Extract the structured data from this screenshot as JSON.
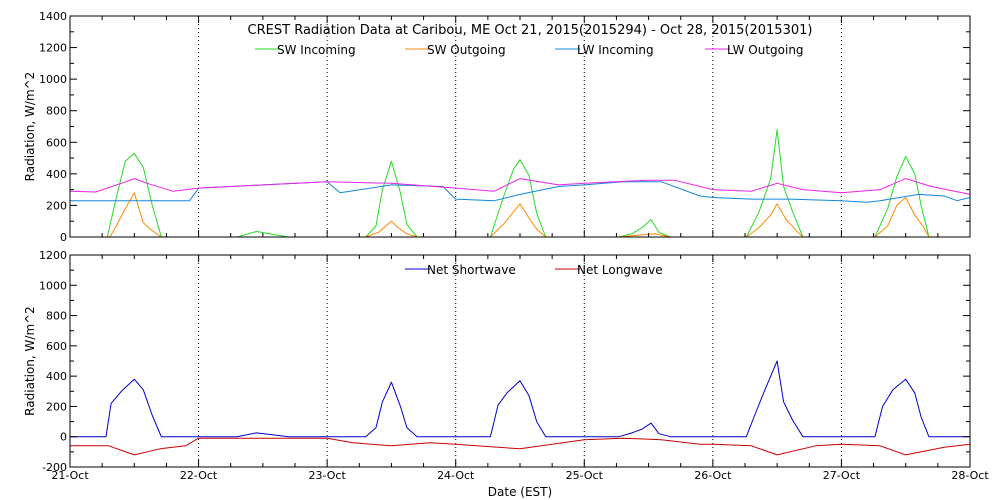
{
  "chart_data": [
    {
      "type": "line",
      "title": "CREST Radiation Data at Caribou, ME   Oct 21, 2015(2015294) - Oct 28, 2015(2015301)",
      "xlabel": "",
      "ylabel": "Radiation, W/m^2",
      "x_ticks": [
        "21-Oct",
        "22-Oct",
        "23-Oct",
        "24-Oct",
        "25-Oct",
        "26-Oct",
        "27-Oct",
        "28-Oct"
      ],
      "show_x_tick_labels": false,
      "xlim": [
        0,
        7
      ],
      "ylim": [
        0,
        1400
      ],
      "y_ticks": [
        0,
        200,
        400,
        600,
        800,
        1000,
        1200,
        1400
      ],
      "grid": "vertical dotted at day boundaries",
      "legend": "top, single row",
      "series": [
        {
          "name": "SW Incoming",
          "color": "#22dd22",
          "x": [
            0,
            0.29,
            0.36,
            0.43,
            0.5,
            0.57,
            0.64,
            0.71,
            1.3,
            1.45,
            1.55,
            1.7,
            2.3,
            2.38,
            2.43,
            2.5,
            2.57,
            2.62,
            2.7,
            3.27,
            3.37,
            3.45,
            3.5,
            3.57,
            3.63,
            3.7,
            4.27,
            4.37,
            4.45,
            4.52,
            4.58,
            4.67,
            5.26,
            5.36,
            5.45,
            5.5,
            5.55,
            5.62,
            5.7,
            6.26,
            6.36,
            6.43,
            6.5,
            6.57,
            6.62,
            6.68,
            7
          ],
          "y": [
            0,
            0,
            250,
            480,
            530,
            440,
            200,
            0,
            0,
            35,
            20,
            0,
            0,
            70,
            300,
            480,
            280,
            80,
            0,
            0,
            250,
            430,
            490,
            390,
            150,
            0,
            0,
            20,
            60,
            110,
            30,
            0,
            0,
            160,
            370,
            680,
            320,
            160,
            0,
            0,
            180,
            380,
            510,
            400,
            200,
            0,
            0
          ]
        },
        {
          "name": "SW Outgoing",
          "color": "#ff8800",
          "x": [
            0,
            0.31,
            0.36,
            0.43,
            0.5,
            0.57,
            0.64,
            0.71,
            2.3,
            2.4,
            2.47,
            2.5,
            2.55,
            2.62,
            2.7,
            3.27,
            3.37,
            3.45,
            3.5,
            3.57,
            3.63,
            3.7,
            4.27,
            4.4,
            4.55,
            4.67,
            5.26,
            5.36,
            5.45,
            5.5,
            5.57,
            5.65,
            5.7,
            6.26,
            6.36,
            6.43,
            6.5,
            6.57,
            6.64,
            6.68,
            7
          ],
          "y": [
            0,
            0,
            70,
            180,
            280,
            90,
            40,
            0,
            0,
            30,
            80,
            100,
            60,
            20,
            0,
            0,
            80,
            160,
            210,
            120,
            50,
            0,
            0,
            10,
            20,
            0,
            0,
            60,
            140,
            210,
            110,
            40,
            0,
            0,
            70,
            200,
            250,
            140,
            60,
            0,
            0
          ]
        },
        {
          "name": "LW Incoming",
          "color": "#1188dd",
          "x": [
            0,
            0.5,
            0.93,
            1.0,
            1.5,
            2.0,
            2.1,
            2.5,
            2.9,
            3.0,
            3.3,
            3.5,
            3.8,
            4.0,
            4.3,
            4.6,
            4.9,
            5.0,
            5.3,
            5.6,
            6.0,
            6.2,
            6.3,
            6.6,
            6.8,
            6.9,
            7
          ],
          "y": [
            230,
            230,
            230,
            310,
            330,
            350,
            280,
            330,
            320,
            240,
            230,
            270,
            320,
            330,
            350,
            350,
            260,
            250,
            240,
            240,
            230,
            220,
            230,
            270,
            260,
            230,
            250
          ]
        },
        {
          "name": "LW Outgoing",
          "color": "#ee22ee",
          "x": [
            0,
            0.2,
            0.4,
            0.5,
            0.6,
            0.8,
            1.0,
            1.5,
            2.0,
            2.5,
            3.0,
            3.3,
            3.5,
            3.8,
            4.0,
            4.5,
            4.7,
            5.0,
            5.3,
            5.5,
            5.7,
            6.0,
            6.3,
            6.5,
            6.7,
            7
          ],
          "y": [
            290,
            285,
            340,
            370,
            340,
            290,
            310,
            330,
            350,
            340,
            310,
            290,
            370,
            330,
            340,
            360,
            360,
            300,
            290,
            340,
            300,
            280,
            300,
            370,
            320,
            270
          ]
        }
      ]
    },
    {
      "type": "line",
      "title": "",
      "xlabel": "Date (EST)",
      "ylabel": "Radiation, W/m^2",
      "x_ticks": [
        "21-Oct",
        "22-Oct",
        "23-Oct",
        "24-Oct",
        "25-Oct",
        "26-Oct",
        "27-Oct",
        "28-Oct"
      ],
      "show_x_tick_labels": true,
      "xlim": [
        0,
        7
      ],
      "ylim": [
        -200,
        1200
      ],
      "y_ticks": [
        -200,
        0,
        200,
        400,
        600,
        800,
        1000,
        1200
      ],
      "grid": "vertical dotted at day boundaries",
      "legend": "top, single row",
      "series": [
        {
          "name": "Net Shortwave",
          "color": "#0000cc",
          "x": [
            0,
            0.28,
            0.32,
            0.4,
            0.5,
            0.57,
            0.64,
            0.71,
            1.3,
            1.45,
            1.55,
            1.7,
            2.3,
            2.38,
            2.43,
            2.5,
            2.57,
            2.62,
            2.7,
            3.27,
            3.33,
            3.4,
            3.5,
            3.57,
            3.63,
            3.7,
            4.27,
            4.37,
            4.45,
            4.52,
            4.58,
            4.67,
            5.26,
            5.32,
            5.4,
            5.5,
            5.55,
            5.62,
            5.7,
            6.26,
            6.32,
            6.4,
            6.5,
            6.57,
            6.62,
            6.68,
            7
          ],
          "y": [
            0,
            0,
            220,
            300,
            380,
            310,
            140,
            0,
            0,
            25,
            15,
            0,
            0,
            60,
            230,
            360,
            200,
            60,
            0,
            0,
            210,
            290,
            370,
            270,
            100,
            0,
            0,
            25,
            50,
            90,
            20,
            0,
            0,
            130,
            300,
            500,
            230,
            110,
            0,
            0,
            200,
            310,
            380,
            290,
            130,
            0,
            0
          ]
        },
        {
          "name": "Net Longwave",
          "color": "#cc0000",
          "x": [
            0,
            0.3,
            0.5,
            0.7,
            0.9,
            1.0,
            1.5,
            2.0,
            2.2,
            2.5,
            2.8,
            3.0,
            3.5,
            4.0,
            4.3,
            4.6,
            4.9,
            5.0,
            5.3,
            5.5,
            5.8,
            6.0,
            6.3,
            6.5,
            6.8,
            7
          ],
          "y": [
            -60,
            -60,
            -120,
            -80,
            -60,
            -10,
            -10,
            -10,
            -40,
            -60,
            -40,
            -50,
            -80,
            -20,
            -10,
            -20,
            -50,
            -50,
            -60,
            -120,
            -60,
            -50,
            -60,
            -120,
            -70,
            -50
          ]
        }
      ]
    }
  ]
}
